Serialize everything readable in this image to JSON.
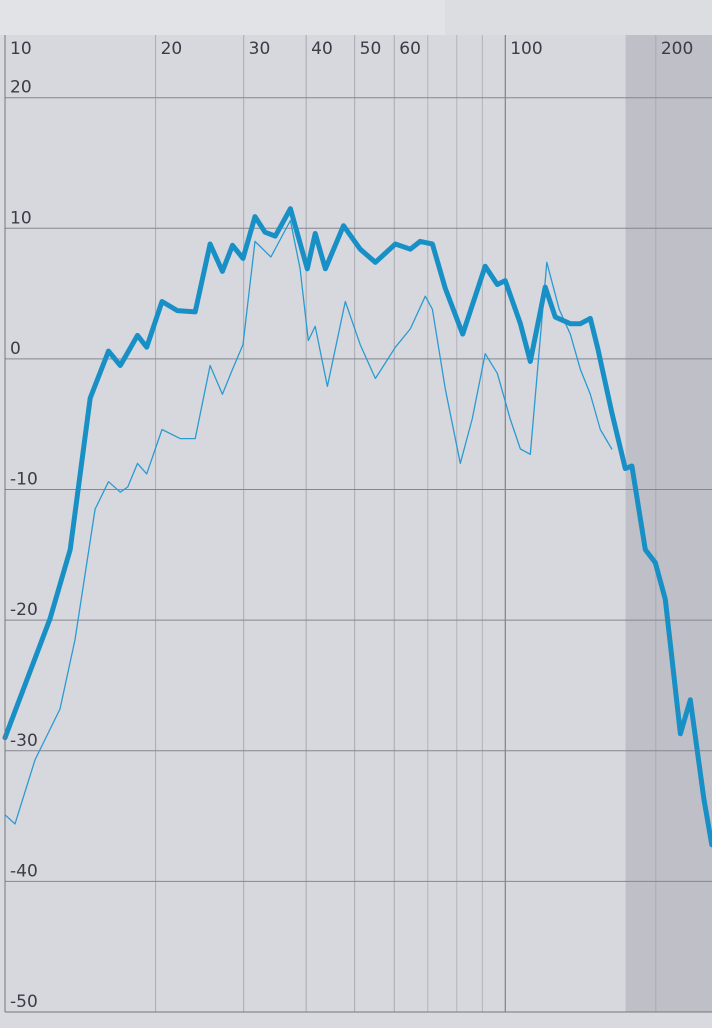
{
  "chart_data": {
    "type": "line",
    "xscale": "log",
    "xlim": [
      10,
      259
    ],
    "ylim": [
      -50,
      24.8
    ],
    "xticks": [
      10,
      20,
      30,
      40,
      50,
      60,
      100,
      200
    ],
    "xminor": [
      70,
      80,
      90
    ],
    "yticks": [
      -50,
      -40,
      -30,
      -20,
      -10,
      0,
      10,
      20
    ],
    "grid": true,
    "shaded_range": [
      174,
      259
    ],
    "series": [
      {
        "color": "#1890c6",
        "width": 5,
        "x": [
          10,
          12.3,
          13.5,
          14.8,
          16.1,
          17,
          18.4,
          19.2,
          20.6,
          22.1,
          24,
          25.7,
          27.2,
          28.5,
          29.9,
          31.6,
          33.1,
          34.7,
          37.2,
          40.2,
          41.7,
          43.7,
          47.5,
          51.3,
          55,
          60.3,
          64.6,
          67.6,
          71.5,
          75.9,
          82.2,
          91.2,
          96.4,
          100,
          107.2,
          112.2,
          120.2,
          125.9,
          134.9,
          141.3,
          147.9,
          153.1,
          163.3,
          173.8,
          179.1,
          190.5,
          199.5,
          208.9,
          223.9,
          234.4,
          249.5,
          258.8
        ],
        "values": [
          -29,
          -19.9,
          -14.6,
          -3,
          0.6,
          -0.5,
          1.8,
          0.9,
          4.4,
          3.7,
          3.6,
          8.8,
          6.7,
          8.7,
          7.7,
          10.9,
          9.7,
          9.4,
          11.5,
          6.9,
          9.6,
          6.9,
          10.2,
          8.4,
          7.4,
          8.8,
          8.4,
          9,
          8.8,
          5.4,
          1.9,
          7.1,
          5.7,
          6,
          2.7,
          -0.2,
          5.5,
          3.2,
          2.7,
          2.7,
          3.1,
          0.8,
          -4.1,
          -8.4,
          -8.2,
          -14.6,
          -15.6,
          -18.4,
          -28.7,
          -26.1,
          -33.7,
          -37.2
        ]
      },
      {
        "color": "#2a9bd2",
        "width": 1.3,
        "x": [
          10,
          10.47,
          11.48,
          12.88,
          13.8,
          15.14,
          16.1,
          17,
          17.6,
          18.4,
          19.2,
          20.6,
          22.4,
          24,
          25.7,
          27.2,
          28.5,
          29.9,
          31.6,
          34,
          37.2,
          38.9,
          40.4,
          41.7,
          44.1,
          47.9,
          51.3,
          55,
          60.3,
          64.6,
          69.2,
          71.5,
          75.9,
          81.3,
          85.9,
          91.2,
          96.4,
          102.3,
          107.2,
          112.2,
          121.1,
          128.2,
          134.9,
          141.3,
          147.9,
          154.9,
          163.3
        ],
        "values": [
          -34.9,
          -35.6,
          -30.7,
          -26.8,
          -21.5,
          -11.5,
          -9.4,
          -10.2,
          -9.8,
          -8,
          -8.8,
          -5.4,
          -6.1,
          -6.1,
          -0.5,
          -2.7,
          -0.8,
          1.1,
          9,
          7.8,
          10.6,
          6.9,
          1.4,
          2.5,
          -2.1,
          4.4,
          1.1,
          -1.5,
          0.9,
          2.3,
          4.8,
          3.8,
          -2.3,
          -8,
          -4.6,
          0.4,
          -1.1,
          -4.6,
          -6.9,
          -7.3,
          7.4,
          3.8,
          1.9,
          -0.8,
          -2.7,
          -5.4,
          -6.9
        ]
      }
    ]
  }
}
